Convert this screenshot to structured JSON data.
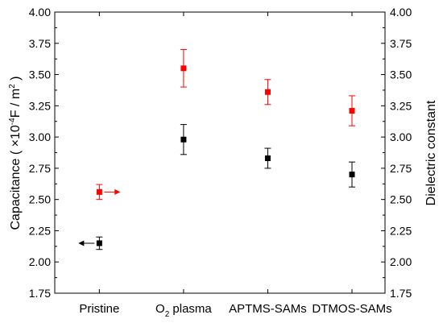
{
  "chart_data": {
    "type": "scatter",
    "categories": [
      "Pristine",
      "plasma",
      "APTMS-SAMs",
      "DTMOS-SAMs"
    ],
    "category_o2_prefix": "O",
    "category_o2_subscript": "2",
    "y_left": {
      "label_prefix": "Capacitance ( ×10",
      "label_exp1": "-4",
      "label_mid": "F / m",
      "label_exp2": "2",
      "label_suffix": " )",
      "lim": [
        1.75,
        4.0
      ],
      "ticks": [
        "1.75",
        "2.00",
        "2.25",
        "2.50",
        "2.75",
        "3.00",
        "3.25",
        "3.50",
        "3.75",
        "4.00"
      ]
    },
    "y_right": {
      "label": "Dielectric constant",
      "lim": [
        1.75,
        4.0
      ],
      "ticks": [
        "1.75",
        "2.00",
        "2.25",
        "2.50",
        "2.75",
        "3.00",
        "3.25",
        "3.50",
        "3.75",
        "4.00"
      ]
    },
    "series": [
      {
        "axis": "left",
        "color": "#000000",
        "values": [
          2.15,
          2.98,
          2.83,
          2.7
        ],
        "errors": [
          0.05,
          0.12,
          0.08,
          0.1
        ],
        "pointer_direction": "left"
      },
      {
        "axis": "right",
        "color": "#ff0000",
        "values": [
          2.56,
          3.55,
          3.36,
          3.21
        ],
        "errors": [
          0.06,
          0.15,
          0.1,
          0.12
        ],
        "pointer_direction": "right"
      }
    ],
    "grid": false,
    "legend": "none"
  }
}
